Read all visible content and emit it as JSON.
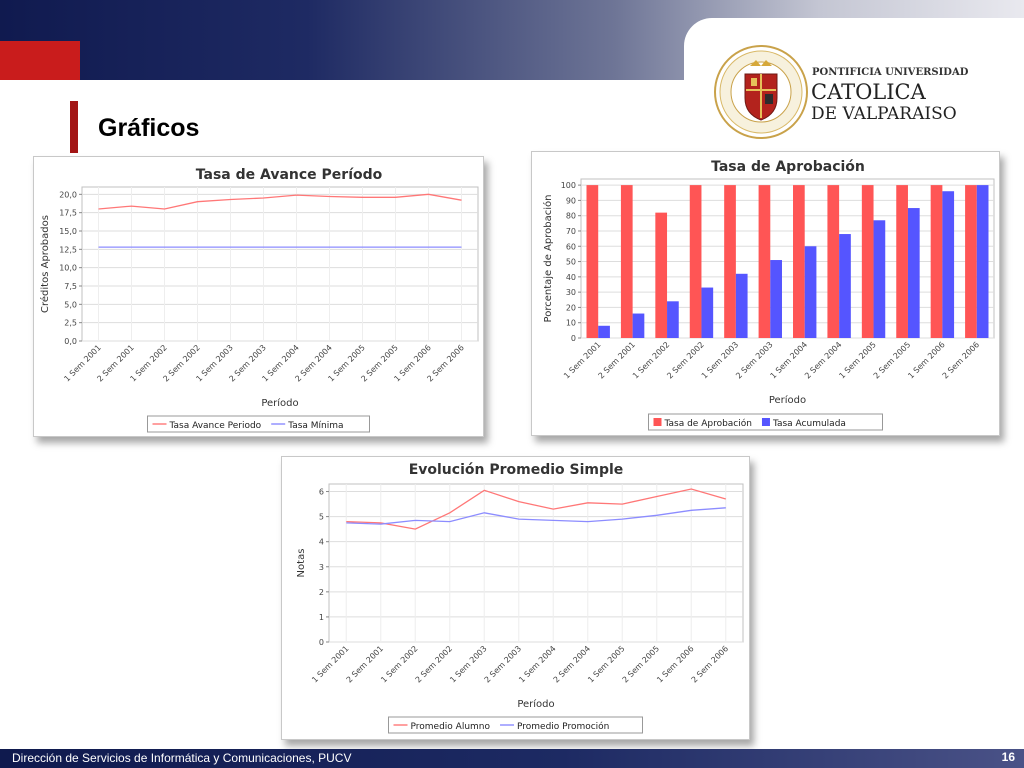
{
  "slide": {
    "title": "Gráficos",
    "footer": "Dirección de Servicios de Informática y Comunicaciones, PUCV",
    "page_number": "16"
  },
  "logo": {
    "line1": "PONTIFICIA UNIVERSIDAD",
    "line2": "CATOLICA",
    "line3": "DE VALPARAISO",
    "seal_text": "PONTIFICIA UNIVERSIDAD CATOLICA DE VALPARAISO"
  },
  "colors": {
    "header_navy": "#101a4f",
    "accent_red": "#c91c1c",
    "chart_red": "#ff5555",
    "chart_blue": "#5555ff",
    "line_pink": "#ff7777",
    "line_lavender": "#8c8cff"
  },
  "chart_data": [
    {
      "type": "line",
      "title": "Tasa de Avance Período",
      "xlabel": "Período",
      "ylabel": "Créditos Aprobados",
      "ylim": [
        0,
        21
      ],
      "yticks": [
        "0,0",
        "2,5",
        "5,0",
        "7,5",
        "10,0",
        "12,5",
        "15,0",
        "17,5",
        "20,0"
      ],
      "categories": [
        "1 Sem 2001",
        "2 Sem 2001",
        "1 Sem 2002",
        "2 Sem 2002",
        "1 Sem 2003",
        "2 Sem 2003",
        "1 Sem 2004",
        "2 Sem 2004",
        "1 Sem 2005",
        "2 Sem 2005",
        "1 Sem 2006",
        "2 Sem 2006"
      ],
      "series": [
        {
          "name": "Tasa Avance Periodo",
          "values": [
            18.0,
            18.4,
            18.0,
            19.0,
            19.3,
            19.5,
            19.9,
            19.7,
            19.6,
            19.6,
            20.0,
            19.2
          ]
        },
        {
          "name": "Tasa Mínima",
          "values": [
            12.8,
            12.8,
            12.8,
            12.8,
            12.8,
            12.8,
            12.8,
            12.8,
            12.8,
            12.8,
            12.8,
            12.8
          ]
        }
      ],
      "legend": "bottom",
      "grid": true
    },
    {
      "type": "bar",
      "title": "Tasa de Aprobación",
      "xlabel": "Período",
      "ylabel": "Porcentaje de Aprobación",
      "ylim": [
        0,
        104
      ],
      "yticks": [
        "0",
        "10",
        "20",
        "30",
        "40",
        "50",
        "60",
        "70",
        "80",
        "90",
        "100"
      ],
      "categories": [
        "1 Sem 2001",
        "2 Sem 2001",
        "1 Sem 2002",
        "2 Sem 2002",
        "1 Sem 2003",
        "2 Sem 2003",
        "1 Sem 2004",
        "2 Sem 2004",
        "1 Sem 2005",
        "2 Sem 2005",
        "1 Sem 2006",
        "2 Sem 2006"
      ],
      "series": [
        {
          "name": "Tasa de Aprobación",
          "values": [
            100,
            100,
            82,
            100,
            100,
            100,
            100,
            100,
            100,
            100,
            100,
            100
          ]
        },
        {
          "name": "Tasa Acumulada",
          "values": [
            8,
            16,
            24,
            33,
            42,
            51,
            60,
            68,
            77,
            85,
            96,
            100
          ]
        }
      ],
      "legend": "bottom",
      "grid": true
    },
    {
      "type": "line",
      "title": "Evolución Promedio Simple",
      "xlabel": "Período",
      "ylabel": "Notas",
      "ylim": [
        0,
        6.3
      ],
      "yticks": [
        "0",
        "1",
        "2",
        "3",
        "4",
        "5",
        "6"
      ],
      "categories": [
        "1 Sem 2001",
        "2 Sem 2001",
        "1 Sem 2002",
        "2 Sem 2002",
        "1 Sem 2003",
        "2 Sem 2003",
        "1 Sem 2004",
        "2 Sem 2004",
        "1 Sem 2005",
        "2 Sem 2005",
        "1 Sem 2006",
        "2 Sem 2006"
      ],
      "series": [
        {
          "name": "Promedio Alumno",
          "values": [
            4.8,
            4.75,
            4.5,
            5.15,
            6.05,
            5.6,
            5.3,
            5.55,
            5.5,
            5.8,
            6.1,
            5.7
          ]
        },
        {
          "name": "Promedio Promoción",
          "values": [
            4.75,
            4.7,
            4.85,
            4.8,
            5.15,
            4.9,
            4.85,
            4.8,
            4.9,
            5.05,
            5.25,
            5.35
          ]
        }
      ],
      "legend": "bottom",
      "grid": true
    }
  ]
}
